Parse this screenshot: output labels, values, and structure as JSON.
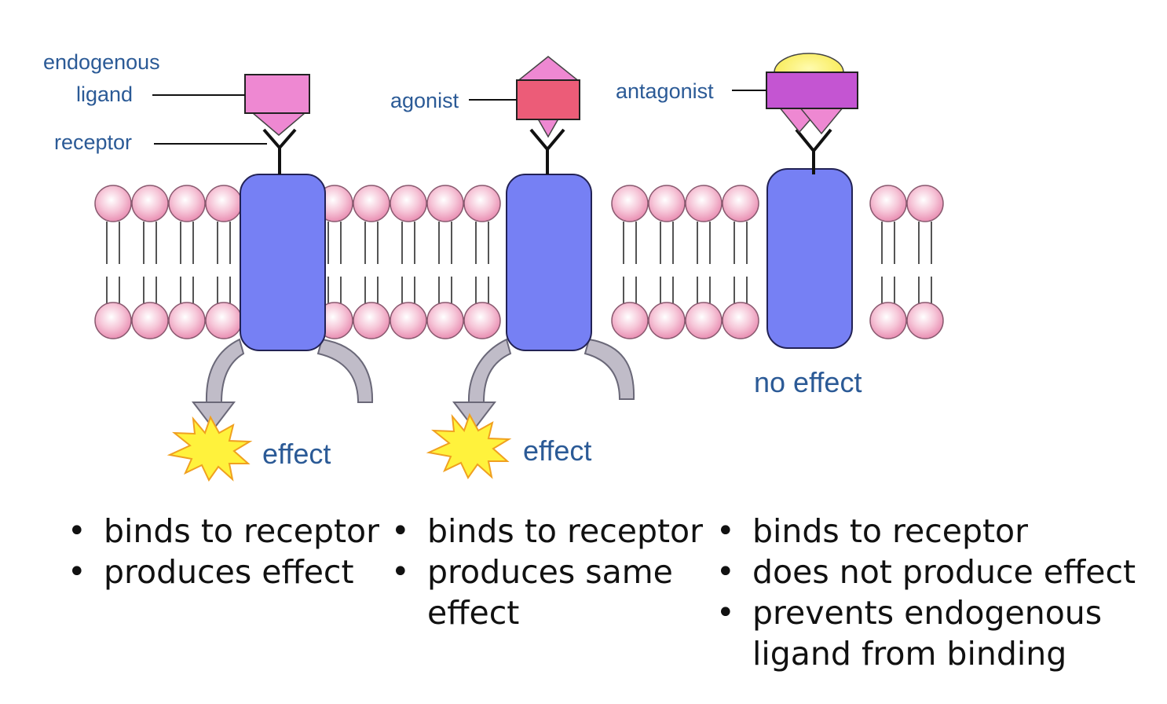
{
  "diagram": {
    "labels": {
      "endogenous_ligand_line1": "endogenous",
      "endogenous_ligand_line2": "ligand",
      "receptor": "receptor",
      "agonist": "agonist",
      "antagonist": "antagonist",
      "effect_1": "effect",
      "effect_2": "effect",
      "no_effect": "no effect"
    },
    "colors": {
      "ligand": "#ee88d2",
      "agonist": "#ec5c78",
      "antagonist_block": "#c455d2",
      "antagonist_cap": "#f8ea5a",
      "protein": "#7680f4",
      "phospholipid_head": "#f2aec6",
      "arrow": "#c0bcc8",
      "burst": "#fff23c",
      "label": "#2b5a96"
    }
  },
  "bullets": {
    "col1": [
      "binds to receptor",
      "produces effect"
    ],
    "col2": [
      "binds to receptor",
      "produces same effect"
    ],
    "col3": [
      "binds to receptor",
      "does not produce effect",
      "prevents endogenous ligand from binding"
    ]
  }
}
